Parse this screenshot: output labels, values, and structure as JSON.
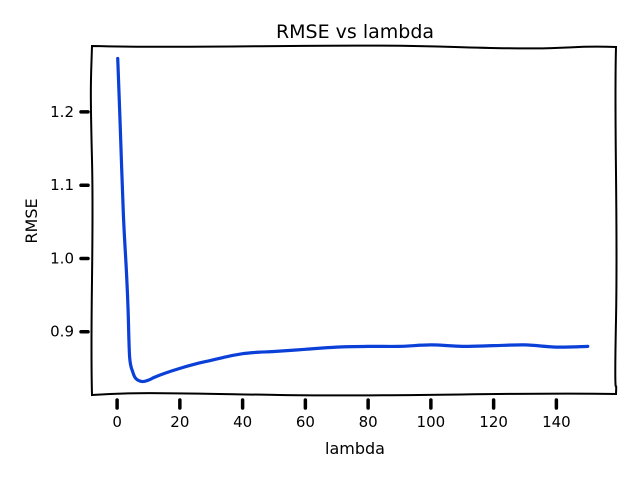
{
  "chart_data": {
    "type": "line",
    "title": "RMSE vs lambda",
    "xlabel": "lambda",
    "ylabel": "RMSE",
    "xlim": [
      -8,
      159
    ],
    "ylim": [
      0.815,
      1.29
    ],
    "x_ticks": [
      0,
      20,
      40,
      60,
      80,
      100,
      120,
      140
    ],
    "y_ticks": [
      0.9,
      1.0,
      1.1,
      1.2
    ],
    "x_tick_labels": [
      "0",
      "20",
      "40",
      "60",
      "80",
      "100",
      "120",
      "140"
    ],
    "y_tick_labels": [
      "0.9",
      "1.0",
      "1.1",
      "1.2"
    ],
    "grid": false,
    "series": [
      {
        "color": "#0a3fd8",
        "x": [
          0.2,
          1,
          2,
          3,
          3.5,
          4,
          5,
          6,
          8,
          10,
          12,
          15,
          20,
          25,
          30,
          35,
          40,
          45,
          50,
          60,
          70,
          80,
          90,
          100,
          110,
          120,
          130,
          140,
          150
        ],
        "y": [
          1.273,
          1.18,
          1.06,
          0.98,
          0.93,
          0.865,
          0.845,
          0.836,
          0.832,
          0.834,
          0.838,
          0.843,
          0.85,
          0.856,
          0.861,
          0.866,
          0.87,
          0.872,
          0.873,
          0.876,
          0.879,
          0.88,
          0.88,
          0.882,
          0.88,
          0.881,
          0.882,
          0.879,
          0.88
        ]
      }
    ]
  }
}
